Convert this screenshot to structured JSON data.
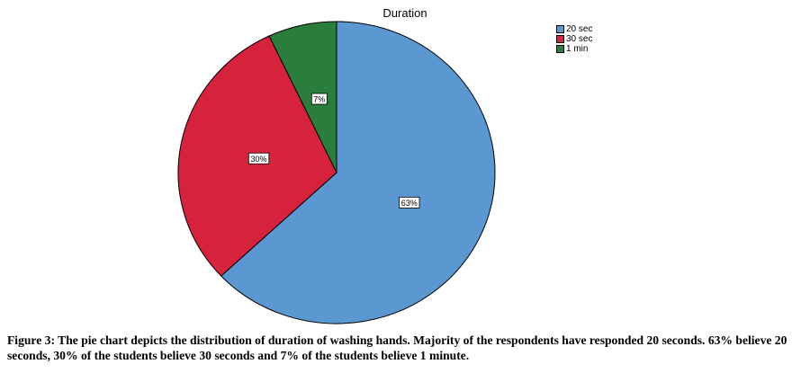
{
  "chart_data": {
    "type": "pie",
    "title": "Duration",
    "categories": [
      "20 sec",
      "30 sec",
      "1 min"
    ],
    "values": [
      63,
      30,
      7
    ],
    "data_labels": [
      "63%",
      "30%",
      "7%"
    ],
    "colors": [
      "#5b97d1",
      "#d6223c",
      "#2b7d3d"
    ],
    "legend_placement": "top-right",
    "grid": false
  },
  "caption": "Figure 3: The pie chart depicts the distribution of duration of washing hands. Majority of the respondents have responded 20 seconds. 63% believe 20 seconds, 30% of the students believe 30 seconds and 7% of the students believe 1 minute."
}
